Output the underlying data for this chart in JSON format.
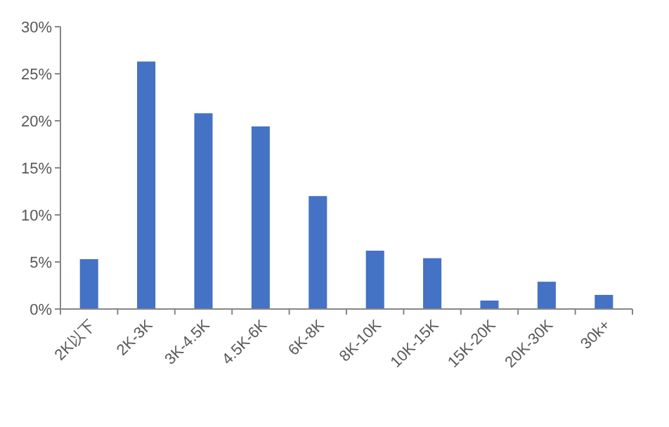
{
  "chart_data": {
    "type": "bar",
    "categories": [
      "2K以下",
      "2K-3K",
      "3K-4.5K",
      "4.5K-6K",
      "6K-8K",
      "8K-10K",
      "10K-15K",
      "15K-20K",
      "20K-30K",
      "30k+"
    ],
    "values": [
      5.3,
      26.3,
      20.8,
      19.4,
      12.0,
      6.2,
      5.4,
      0.9,
      2.9,
      1.5
    ],
    "color": "#4472c4",
    "ylim": [
      0,
      30
    ],
    "yticks": [
      {
        "value": 0,
        "label": "0%"
      },
      {
        "value": 5,
        "label": "5%"
      },
      {
        "value": 10,
        "label": "10%"
      },
      {
        "value": 15,
        "label": "15%"
      },
      {
        "value": 20,
        "label": "20%"
      },
      {
        "value": 25,
        "label": "25%"
      },
      {
        "value": 30,
        "label": "30%"
      }
    ],
    "grid": false
  }
}
